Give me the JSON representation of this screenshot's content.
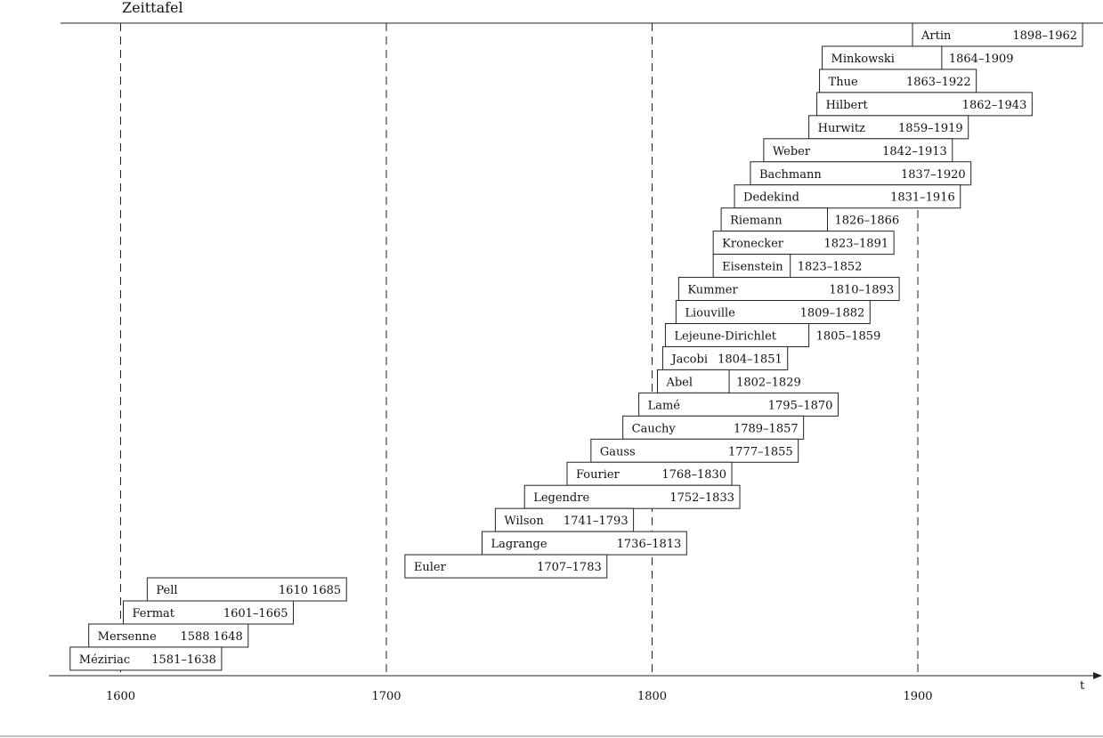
{
  "chart_data": {
    "type": "timeline",
    "title": "Zeittafel",
    "xlabel": "t",
    "xlim": [
      1581,
      1970
    ],
    "ticks": [
      1600,
      1700,
      1800,
      1900
    ],
    "gridlines": "dashed vertical at ticks",
    "entries": [
      {
        "name": "Artin",
        "start": 1898,
        "end": 1962,
        "years": "1898–1962",
        "labelInside": true
      },
      {
        "name": "Minkowski",
        "start": 1864,
        "end": 1909,
        "years": "1864–1909",
        "labelInside": false
      },
      {
        "name": "Thue",
        "start": 1863,
        "end": 1922,
        "years": "1863–1922",
        "labelInside": true
      },
      {
        "name": "Hilbert",
        "start": 1862,
        "end": 1943,
        "years": "1862–1943",
        "labelInside": true
      },
      {
        "name": "Hurwitz",
        "start": 1859,
        "end": 1919,
        "years": "1859–1919",
        "labelInside": true
      },
      {
        "name": "Weber",
        "start": 1842,
        "end": 1913,
        "years": "1842–1913",
        "labelInside": true
      },
      {
        "name": "Bachmann",
        "start": 1837,
        "end": 1920,
        "years": "1837–1920",
        "labelInside": true
      },
      {
        "name": "Dedekind",
        "start": 1831,
        "end": 1916,
        "years": "1831–1916",
        "labelInside": true
      },
      {
        "name": "Riemann",
        "start": 1826,
        "end": 1866,
        "years": "1826–1866",
        "labelInside": false
      },
      {
        "name": "Kronecker",
        "start": 1823,
        "end": 1891,
        "years": "1823–1891",
        "labelInside": true
      },
      {
        "name": "Eisenstein",
        "start": 1823,
        "end": 1852,
        "years": "1823–1852",
        "labelInside": false
      },
      {
        "name": "Kummer",
        "start": 1810,
        "end": 1893,
        "years": "1810–1893",
        "labelInside": true
      },
      {
        "name": "Liouville",
        "start": 1809,
        "end": 1882,
        "years": "1809–1882",
        "labelInside": true
      },
      {
        "name": "Lejeune-Dirichlet",
        "start": 1805,
        "end": 1859,
        "years": "1805–1859",
        "labelInside": false
      },
      {
        "name": "Jacobi",
        "start": 1804,
        "end": 1851,
        "years": "1804–1851",
        "labelInside": true
      },
      {
        "name": "Abel",
        "start": 1802,
        "end": 1829,
        "years": "1802–1829",
        "labelInside": false
      },
      {
        "name": "Lamé",
        "start": 1795,
        "end": 1870,
        "years": "1795–1870",
        "labelInside": true
      },
      {
        "name": "Cauchy",
        "start": 1789,
        "end": 1857,
        "years": "1789–1857",
        "labelInside": true
      },
      {
        "name": "Gauss",
        "start": 1777,
        "end": 1855,
        "years": "1777–1855",
        "labelInside": true
      },
      {
        "name": "Fourier",
        "start": 1768,
        "end": 1830,
        "years": "1768–1830",
        "labelInside": true
      },
      {
        "name": "Legendre",
        "start": 1752,
        "end": 1833,
        "years": "1752–1833",
        "labelInside": true
      },
      {
        "name": "Wilson",
        "start": 1741,
        "end": 1793,
        "years": "1741–1793",
        "labelInside": true
      },
      {
        "name": "Lagrange",
        "start": 1736,
        "end": 1813,
        "years": "1736–1813",
        "labelInside": true
      },
      {
        "name": "Euler",
        "start": 1707,
        "end": 1783,
        "years": "1707–1783",
        "labelInside": true
      },
      {
        "name": "Pell",
        "start": 1610,
        "end": 1685,
        "years": "1610 1685",
        "labelInside": true
      },
      {
        "name": "Fermat",
        "start": 1601,
        "end": 1665,
        "years": "1601–1665",
        "labelInside": true
      },
      {
        "name": "Mersenne",
        "start": 1588,
        "end": 1648,
        "years": "1588 1648",
        "labelInside": true
      },
      {
        "name": "Méziriac",
        "start": 1581,
        "end": 1638,
        "years": "1581–1638",
        "labelInside": true
      }
    ]
  }
}
